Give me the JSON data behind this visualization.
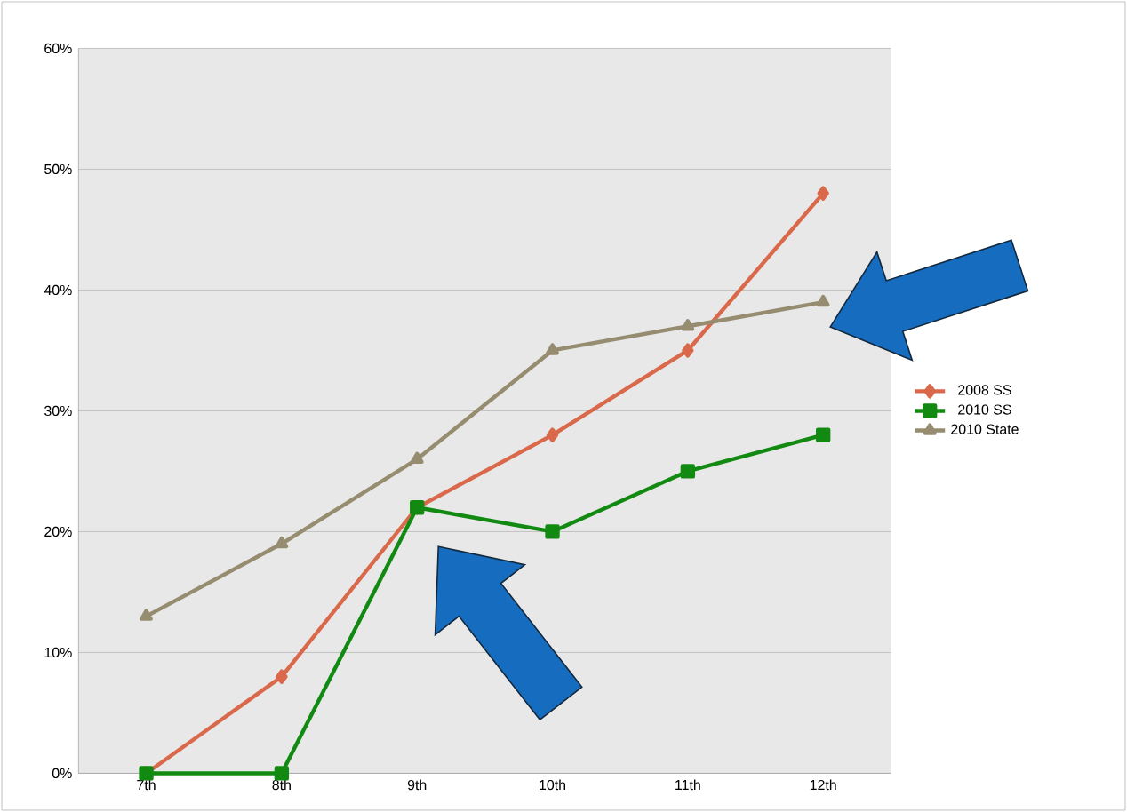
{
  "chart_data": {
    "type": "line",
    "categories": [
      "7th",
      "8th",
      "9th",
      "10th",
      "11th",
      "12th"
    ],
    "series": [
      {
        "name": "2008 SS",
        "color": "#d9694a",
        "marker": "diamond",
        "values": [
          0,
          8,
          22,
          28,
          35,
          48
        ]
      },
      {
        "name": "2010 SS",
        "color": "#128a12",
        "marker": "square",
        "values": [
          0,
          0,
          22,
          20,
          25,
          28
        ]
      },
      {
        "name": "2010 State",
        "color": "#968c70",
        "marker": "triangle",
        "values": [
          13,
          19,
          26,
          35,
          37,
          39
        ]
      }
    ],
    "ylim": [
      0,
      60
    ],
    "yticks": [
      {
        "value": 0,
        "label": "0%"
      },
      {
        "value": 10,
        "label": "10%"
      },
      {
        "value": 20,
        "label": "20%"
      },
      {
        "value": 30,
        "label": "30%"
      },
      {
        "value": 40,
        "label": "40%"
      },
      {
        "value": 50,
        "label": "50%"
      },
      {
        "value": 60,
        "label": "60%"
      }
    ],
    "grid": "y",
    "legend": "right",
    "line_style": "solid"
  }
}
